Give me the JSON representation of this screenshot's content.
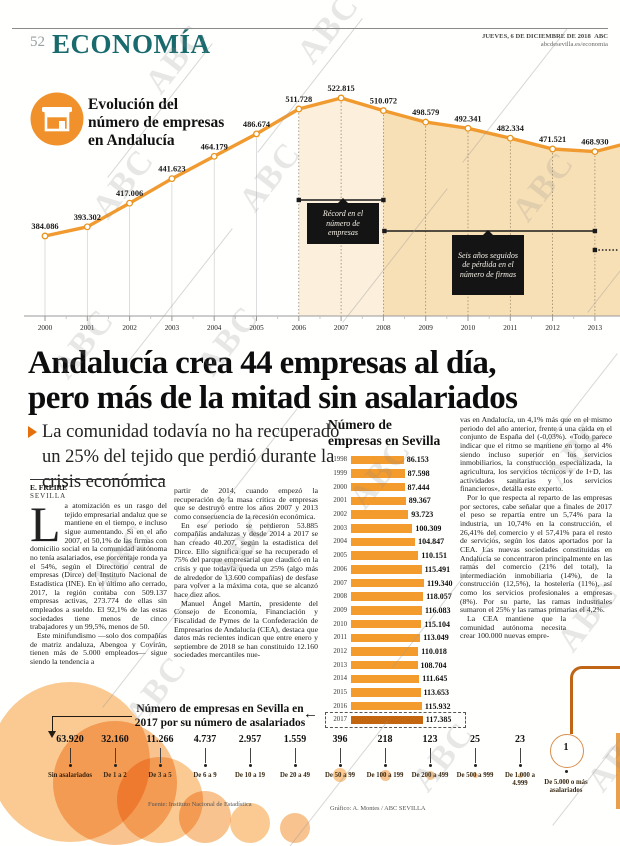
{
  "page": {
    "number": "52",
    "section": "ECONOMÍA",
    "date": "JUEVES, 6 DE DICIEMBRE DE 2018",
    "brand": "ABC",
    "site": "abcdesevilla.es/economia"
  },
  "watermark": "ABC",
  "top_chart": {
    "title_lines": [
      "Evolución del",
      "número de empresas",
      "en Andalucía"
    ],
    "callout_record": "Récord en el número de empresas",
    "callout_loss": "Seis años seguidos de pérdida en el número de firmas"
  },
  "chart_data": [
    {
      "type": "line",
      "title": "Evolución del número de empresas en Andalucía",
      "x": [
        2000,
        2001,
        2002,
        2003,
        2004,
        2005,
        2006,
        2007,
        2008,
        2009,
        2010,
        2011,
        2012,
        2013
      ],
      "values": [
        384086,
        393302,
        417006,
        441623,
        464179,
        486674,
        511728,
        522815,
        510072,
        498579,
        492341,
        482334,
        471521,
        468930
      ],
      "labels": [
        "384.086",
        "393.302",
        "417.006",
        "441.623",
        "464.179",
        "486.674",
        "511.728",
        "522.815",
        "510.072",
        "498.579",
        "492.341",
        "482.334",
        "471.521",
        "468.930"
      ],
      "annotations": [
        "Récord en el número de empresas (2007)",
        "Seis años seguidos de pérdida en el número de firmas (2008-2013)"
      ],
      "line_color": "#f09a30",
      "fill_light": "#fcefdb",
      "fill_dark": "#f8e0b6",
      "grid": true,
      "legend": "none"
    },
    {
      "type": "bar",
      "title": "Número de empresas en Sevilla",
      "categories": [
        1998,
        1999,
        2000,
        2001,
        2002,
        2003,
        2004,
        2005,
        2006,
        2007,
        2008,
        2009,
        2010,
        2011,
        2012,
        2013,
        2014,
        2015,
        2016,
        2017
      ],
      "values": [
        86153,
        87598,
        87444,
        89367,
        93723,
        100309,
        104847,
        110151,
        115491,
        119340,
        118057,
        116083,
        115104,
        113049,
        110018,
        108704,
        111645,
        113653,
        115932,
        117385
      ],
      "labels": [
        "86.153",
        "87.598",
        "87.444",
        "89.367",
        "93.723",
        "100.309",
        "104.847",
        "110.151",
        "115.491",
        "119.340",
        "118.057",
        "116.083",
        "115.104",
        "113.049",
        "110.018",
        "108.704",
        "111.645",
        "113.653",
        "115.932",
        "117.385"
      ],
      "highlight_category": 2017,
      "bar_color": "#f49b2d",
      "highlight_color": "#c4660f"
    },
    {
      "type": "bubble",
      "title": "Número de empresas en Sevilla en 2017 por su número de asalariados",
      "categories": [
        "Sin asalariados",
        "De 1 a 2",
        "De 3 a 5",
        "De 6 a 9",
        "De 10 a 19",
        "De 20 a 49",
        "De 50 a 99",
        "De 100 a 199",
        "De 200 a 499",
        "De 500 a 999",
        "De 1.000 a 4.999",
        "De 5.000 o más asalariados"
      ],
      "values": [
        63920,
        32160,
        11266,
        4737,
        2957,
        1559,
        396,
        218,
        123,
        25,
        23,
        1
      ],
      "labels": [
        "63.920",
        "32.160",
        "11.266",
        "4.737",
        "2.957",
        "1.559",
        "396",
        "218",
        "123",
        "25",
        "23",
        "1"
      ]
    }
  ],
  "headline": {
    "line1": "Andalucía crea 44 empresas al día,",
    "line2": "pero más de la mitad sin asalariados"
  },
  "subhead": "La comunidad todavía no ha recuperado un 25% del tejido que perdió durante la crisis económica",
  "byline": {
    "author": "E. FREIRE",
    "location": "SEVILLA"
  },
  "article": {
    "dropcap": "L",
    "col1": [
      "a atomización es un rasgo del tejido empresarial andaluz que se mantiene en el tiempo, e incluso sigue aumentando. Si en el año 2007, el 50,1% de las firmas con domicilio social en la comunidad autónoma no tenía asalariados, ese porcentaje ronda ya el 54%, según el Directorio central de empresas (Dirce) del Instituto Nacional de Estadística (INE). En el último año cerrado, 2017, la región contaba con 509.137 empresas activas, 273.774 de ellas sin empleados a sueldo. El 92,1% de las estas sociedades tiene menos de cinco trabajadores y un 99,5%, menos de 50.",
      "Este minifundismo —solo dos compañías de matriz andaluza, Abengoa y Covirán, tienen más de 5.000 empleados— sigue siendo la tendencia a"
    ],
    "col2": [
      "partir de 2014, cuando empezó la recuperación de la masa crítica de empresas que se destruyó entre los años 2007 y 2013 como consecuencia de la recesión económica.",
      "En ese periodo se perdieron 53.885 compañías andaluzas y desde 2014 a 2017 se han creado 40.207, según la estadística del Dirce. Ello significa que se ha recuperado el 75% del parque empresarial que claudicó en la crisis y que todavía queda un 25% (algo más de alrededor de 13.600 compañías) de desfase para volver a la máxima cota, que se alcanzó hace diez años.",
      "Manuel Ángel Martín, presidente del Consejo de Economía, Financiación y Fiscalidad de Pymes de la Confederación de Empresarios de Andalucía (CEA), destaca que datos más recientes indican que entre enero y septiembre de 2018 se han constituido 12.160 sociedades mercantiles nue-"
    ],
    "col3": [
      "vas en Andalucía, un 4,1% más que en el mismo periodo del año anterior, frente a una caída en el conjunto de España del (-0,03%). «Todo parece indicar que el ritmo se mantiene en torno al 4% siendo incluso superior en los servicios inmobiliarios, la construcción especializada, la agricultura, los servicios técnicos y de I+D, las actividades sanitarias y los servicios financieros», detalla este experto.",
      "Por lo que respecta al reparto de las empresas por sectores, cabe señalar que a finales de 2017 el peso se repartía entre un 5,74% para la industria, un 10,74% en la construcción, el 26,41% del comercio y el 57,41% para el resto de servicios, según los datos aportados por la CEA. Las nuevas sociedades constituidas en Andalucía se concentraron principalmente en las ramas del comercio (21% del total), la intermediación inmobiliaria (14%), de la construcción (12,5%), la hostelería (11%), así como los servicios profesionales a empresas (8%). Por su parte, las ramas industriales sumaron el 25% y las ramas primarias el 4,2%.",
      "La CEA mantiene que la comunidad autónoma necesita crear 100.000 nuevas empre-"
    ]
  },
  "sevilla_chart_title_lines": [
    "Número de",
    "empresas en Sevilla"
  ],
  "bottom_label": {
    "line1": "Número de empresas en Sevilla en",
    "line2": "2017 por su número de asalariados",
    "arrow": "←"
  },
  "footer": {
    "source": "Fuente: Instituto Nacional de Estadística",
    "credit": "Gráfico: A. Montes / ABC SEVILLA"
  }
}
